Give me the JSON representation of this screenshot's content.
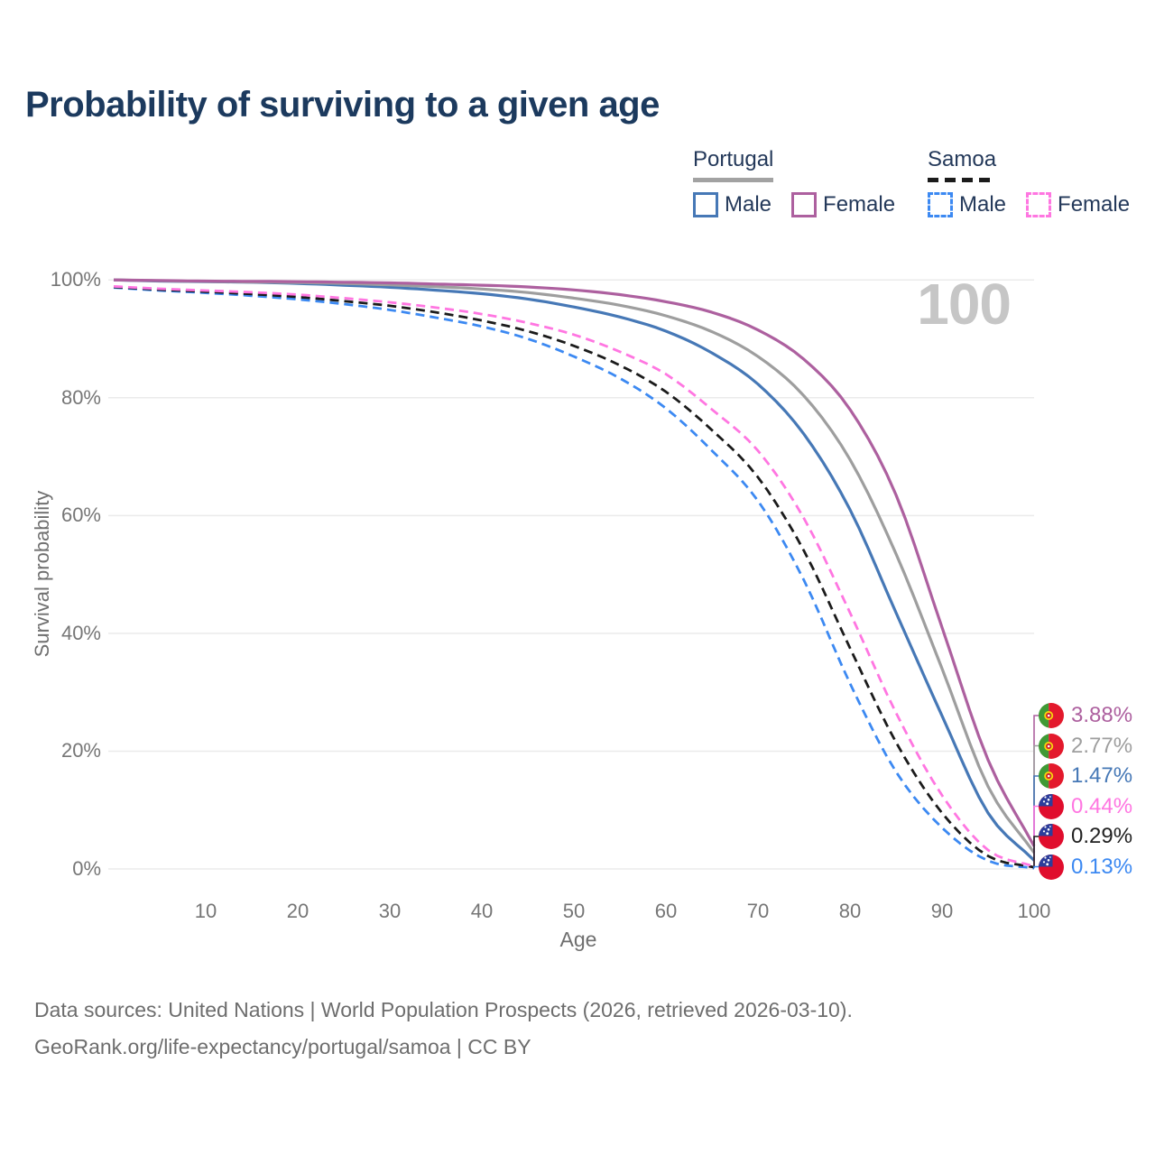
{
  "title": "Probability of surviving to a given age",
  "watermark": "100",
  "legend": {
    "groups": [
      {
        "label": "Portugal",
        "underline_style": "solid",
        "underline_color": "#a2a2a2",
        "items": [
          {
            "label": "Male",
            "color": "#4678b6",
            "style": "solid"
          },
          {
            "label": "Female",
            "color": "#ad609f",
            "style": "solid"
          }
        ]
      },
      {
        "label": "Samoa",
        "underline_style": "dashed",
        "underline_color": "#1b1b1b",
        "items": [
          {
            "label": "Male",
            "color": "#3c89f2",
            "style": "dashed"
          },
          {
            "label": "Female",
            "color": "#ff76e1",
            "style": "dashed"
          }
        ]
      }
    ]
  },
  "chart_data": {
    "type": "line",
    "title": "Probability of surviving to a given age",
    "xlabel": "Age",
    "ylabel": "Survival probability",
    "xlim": [
      0,
      100
    ],
    "ylim": [
      0,
      100
    ],
    "grid": "horizontal",
    "x_ticks": [
      10,
      20,
      30,
      40,
      50,
      60,
      70,
      80,
      90,
      100
    ],
    "y_tick_labels": [
      "0%",
      "20%",
      "40%",
      "60%",
      "80%",
      "100%"
    ],
    "y_tick_values": [
      0,
      20,
      40,
      60,
      80,
      100
    ],
    "x": [
      0,
      5,
      10,
      15,
      20,
      25,
      30,
      35,
      40,
      45,
      50,
      55,
      60,
      65,
      70,
      75,
      80,
      85,
      90,
      95,
      100
    ],
    "series": [
      {
        "name": "Portugal Female",
        "country": "Portugal",
        "sex": "Female",
        "color": "#ad609f",
        "dash": "solid",
        "end_label": "3.88%",
        "values": [
          100,
          99.9,
          99.8,
          99.75,
          99.7,
          99.6,
          99.5,
          99.3,
          99.1,
          98.8,
          98.3,
          97.5,
          96.3,
          94.5,
          91.5,
          86.5,
          78.0,
          63.5,
          41.0,
          18.5,
          3.88
        ]
      },
      {
        "name": "Portugal Both sexes",
        "country": "Portugal",
        "sex": "Both",
        "color": "#9e9e9e",
        "dash": "solid",
        "end_label": "2.77%",
        "values": [
          100,
          99.85,
          99.75,
          99.65,
          99.55,
          99.4,
          99.15,
          98.85,
          98.45,
          97.85,
          96.9,
          95.7,
          93.9,
          91.2,
          87.0,
          80.3,
          69.5,
          53.5,
          34.0,
          14.0,
          2.77
        ]
      },
      {
        "name": "Portugal Male",
        "country": "Portugal",
        "sex": "Male",
        "color": "#4678b6",
        "dash": "solid",
        "end_label": "1.47%",
        "values": [
          100,
          99.8,
          99.7,
          99.6,
          99.4,
          99.1,
          98.75,
          98.25,
          97.65,
          96.75,
          95.4,
          93.7,
          91.3,
          87.6,
          82.3,
          73.8,
          61.0,
          43.5,
          26.0,
          9.5,
          1.47
        ]
      },
      {
        "name": "Samoa Female",
        "country": "Samoa",
        "sex": "Female",
        "color": "#ff76e1",
        "dash": "dashed",
        "end_label": "0.44%",
        "values": [
          98.9,
          98.5,
          98.2,
          97.9,
          97.5,
          96.9,
          96.2,
          95.3,
          94.2,
          92.7,
          90.7,
          87.8,
          84.0,
          78.0,
          71.0,
          59.5,
          43.5,
          26.5,
          12.5,
          3.2,
          0.44
        ]
      },
      {
        "name": "Samoa Both sexes",
        "country": "Samoa",
        "sex": "Both",
        "color": "#1b1b1b",
        "dash": "dashed",
        "end_label": "0.29%",
        "values": [
          98.8,
          98.35,
          98.0,
          97.6,
          97.1,
          96.4,
          95.6,
          94.5,
          93.1,
          91.3,
          88.8,
          85.5,
          81.0,
          74.5,
          66.5,
          54.0,
          37.5,
          21.5,
          9.5,
          2.2,
          0.29
        ]
      },
      {
        "name": "Samoa Male",
        "country": "Samoa",
        "sex": "Male",
        "color": "#3c89f2",
        "dash": "dashed",
        "end_label": "0.13%",
        "values": [
          98.7,
          98.2,
          97.8,
          97.3,
          96.7,
          95.9,
          94.9,
          93.6,
          92.1,
          90.0,
          87.0,
          83.3,
          78.2,
          71.0,
          62.5,
          49.0,
          31.5,
          16.5,
          7.0,
          1.4,
          0.13
        ]
      }
    ]
  },
  "caption": {
    "line1": "Data sources: United Nations | World Population Prospects (2026, retrieved 2026-03-10).",
    "line2": "GeoRank.org/life-expectancy/portugal/samoa | CC BY"
  }
}
